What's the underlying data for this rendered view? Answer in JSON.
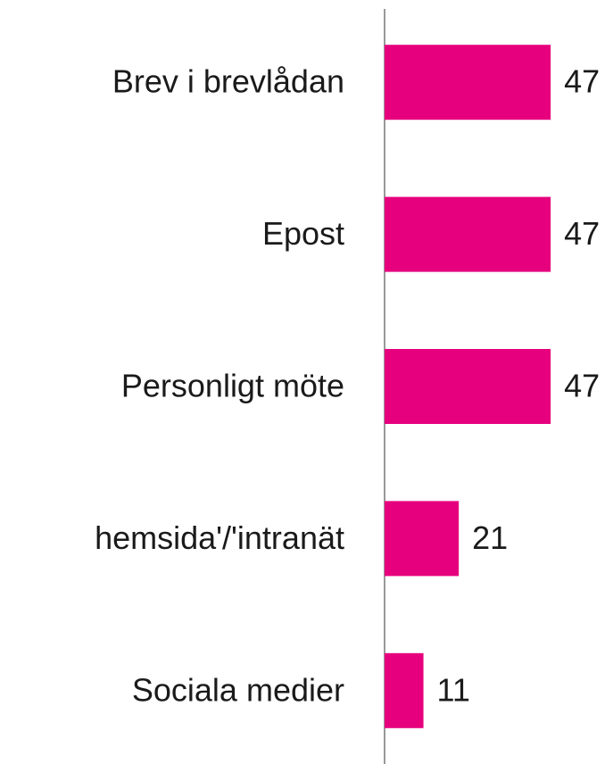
{
  "chart_data": {
    "type": "hbar",
    "categories": [
      "Brev i brevlådan",
      "Epost",
      "Personligt möte",
      "hemsida'/'intranät",
      "Sociala medier"
    ],
    "values": [
      47,
      47,
      47,
      21,
      11
    ],
    "color": "#e6007e",
    "xlim": [
      0,
      50
    ]
  }
}
